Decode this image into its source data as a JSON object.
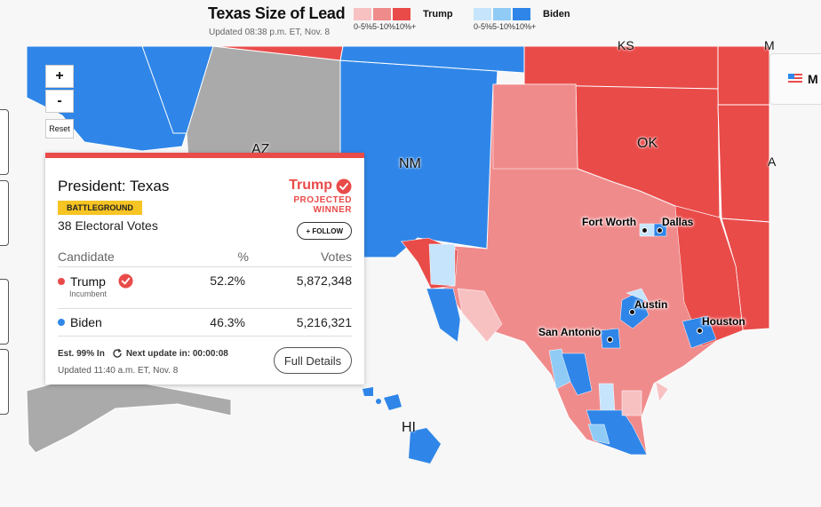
{
  "header": {
    "title": "Texas Size of Lead",
    "updated": "Updated 08:38 p.m. ET, Nov. 8",
    "legend": {
      "trump": {
        "label": "Trump",
        "ticks": "0-5%5-10%10%+",
        "colors": [
          "#f7c1c2",
          "#f08b8c",
          "#e94b49"
        ]
      },
      "biden": {
        "label": "Biden",
        "ticks": "0-5%5-10%10%+",
        "colors": [
          "#c6e4fb",
          "#8fcbf5",
          "#2f86e8"
        ]
      }
    }
  },
  "map_controls": {
    "zoom_in": "+",
    "zoom_out": "-",
    "reset": "Reset"
  },
  "map_labels": {
    "az": "AZ",
    "nm": "NM",
    "ok": "OK",
    "hi": "HI",
    "ks": "KS",
    "mo_partial": "M",
    "ar_partial": "A"
  },
  "cities": {
    "fort_worth": "Fort Worth",
    "dallas": "Dallas",
    "austin": "Austin",
    "san_antonio": "San Antonio",
    "houston": "Houston"
  },
  "corner_tab": {
    "label": "M"
  },
  "card": {
    "race": "President: Texas",
    "badge": "BATTLEGROUND",
    "electoral_votes": "38 Electoral Votes",
    "winner": "Trump",
    "projected": "PROJECTED",
    "winner_word": "WINNER",
    "follow": "+ FOLLOW",
    "columns": {
      "candidate": "Candidate",
      "pct": "%",
      "votes": "Votes"
    },
    "rows": [
      {
        "name": "Trump",
        "sub": "Incumbent",
        "pct": "52.2%",
        "votes": "5,872,348",
        "color": "#e94b49"
      },
      {
        "name": "Biden",
        "pct": "46.3%",
        "votes": "5,216,321",
        "color": "#2f86e8"
      }
    ],
    "est": "Est. 99% In",
    "next_update": "Next update in: 00:00:08",
    "updated": "Updated 11:40 a.m. ET, Nov. 8",
    "full_details": "Full Details"
  },
  "colors": {
    "gop": "#e94b49",
    "gop_light": "#f08b8c",
    "dem": "#2f86e8",
    "gray": "#aaaaaa"
  }
}
